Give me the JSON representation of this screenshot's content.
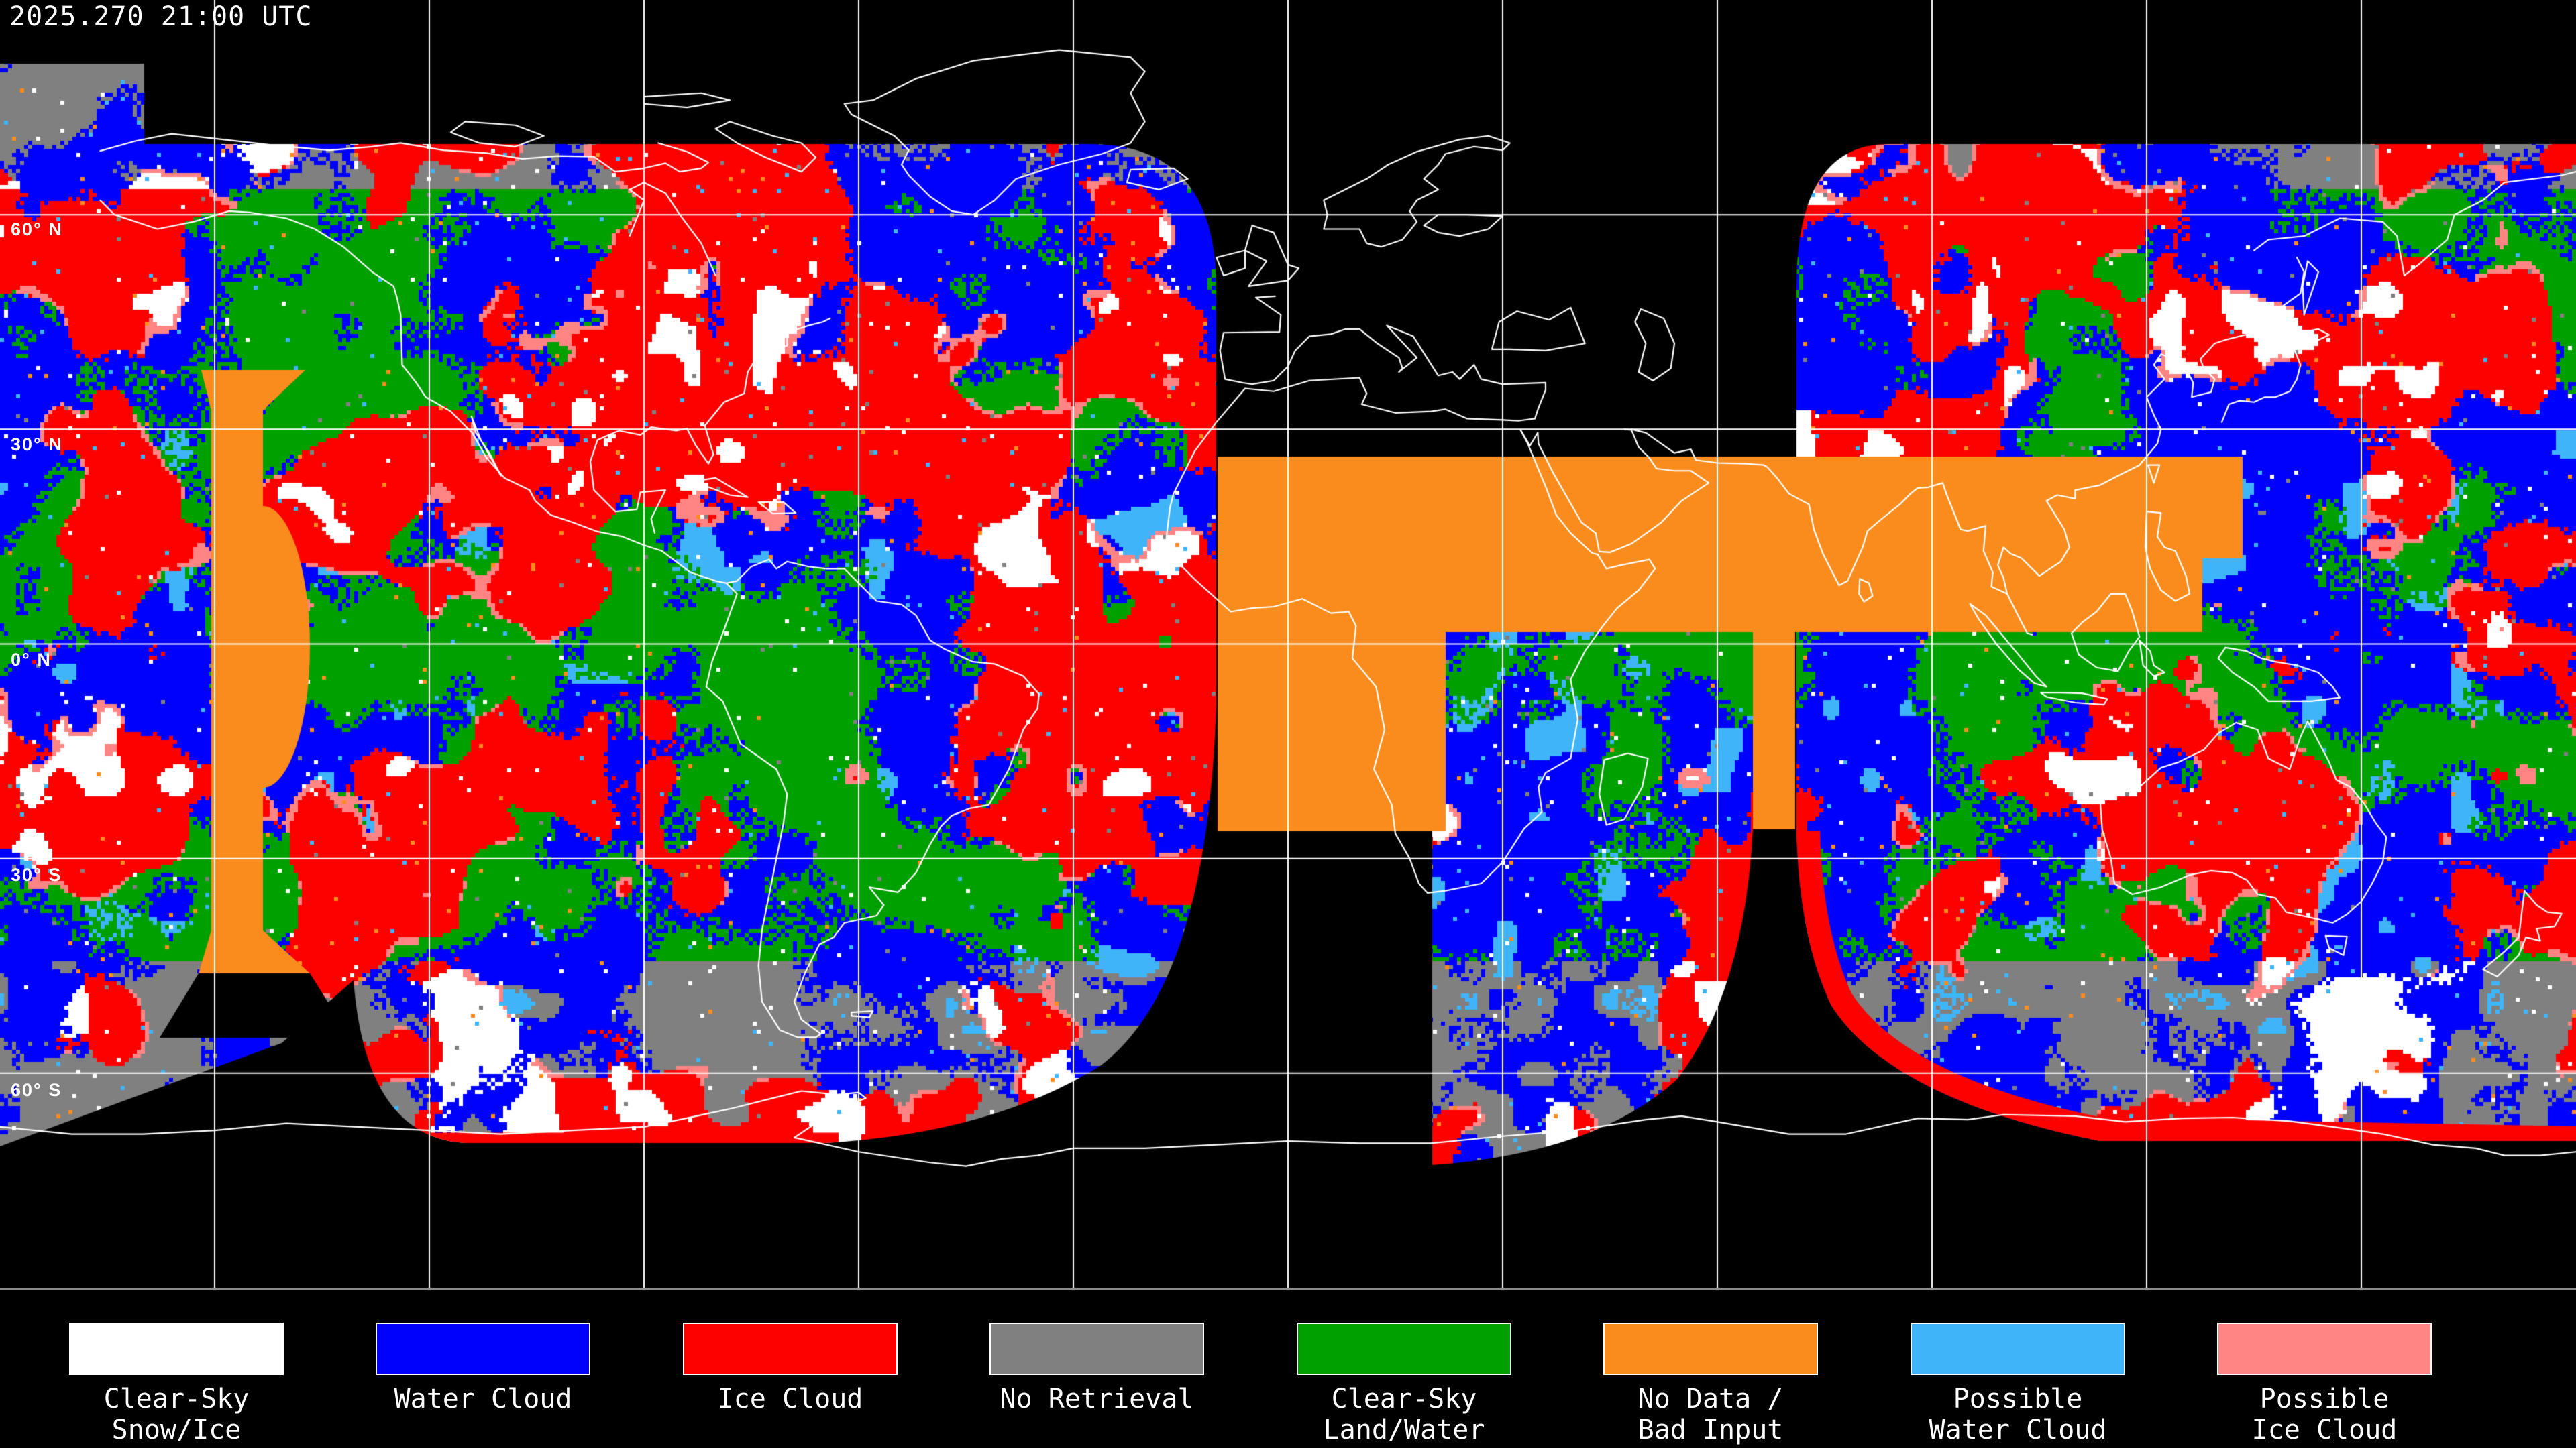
{
  "header": {
    "timestamp": "2025.270 21:00 UTC"
  },
  "map": {
    "lat_labels": [
      {
        "text": "60° N",
        "lat": 60
      },
      {
        "text": "30° N",
        "lat": 30
      },
      {
        "text": "0° N",
        "lat": 0
      },
      {
        "text": "30° S",
        "lat": -30
      },
      {
        "text": "60° S",
        "lat": -60
      }
    ],
    "grid": {
      "lat_lines_deg": [
        60,
        30,
        0,
        -30,
        -60
      ],
      "lon_lines_deg": [
        -150,
        -120,
        -90,
        -60,
        -30,
        0,
        30,
        60,
        90,
        120,
        150
      ],
      "grid_color": "#ffffff",
      "coastline_color": "#ffffff",
      "background_color": "#000000",
      "separator_color": "#8a8a8a"
    }
  },
  "palette": {
    "clear_sky_snow_ice": "#ffffff",
    "water_cloud": "#0000fd",
    "ice_cloud": "#fd0000",
    "no_retrieval": "#808080",
    "clear_sky_land_water": "#00a000",
    "no_data_bad_input": "#f98c1c",
    "possible_water_cloud": "#3fb4f9",
    "possible_ice_cloud": "#ff8585"
  },
  "legend": {
    "items": [
      {
        "line1": "Clear-Sky",
        "line2": "Snow/Ice",
        "color": "#ffffff"
      },
      {
        "line1": "Water Cloud",
        "line2": "",
        "color": "#0000fd"
      },
      {
        "line1": "Ice Cloud",
        "line2": "",
        "color": "#fd0000"
      },
      {
        "line1": "No Retrieval",
        "line2": "",
        "color": "#808080"
      },
      {
        "line1": "Clear-Sky",
        "line2": "Land/Water",
        "color": "#00a000"
      },
      {
        "line1": "No Data /",
        "line2": "Bad Input",
        "color": "#f98c1c"
      },
      {
        "line1": "Possible",
        "line2": "Water Cloud",
        "color": "#3fb4f9"
      },
      {
        "line1": "Possible",
        "line2": "Ice Cloud",
        "color": "#ff8585"
      }
    ]
  }
}
